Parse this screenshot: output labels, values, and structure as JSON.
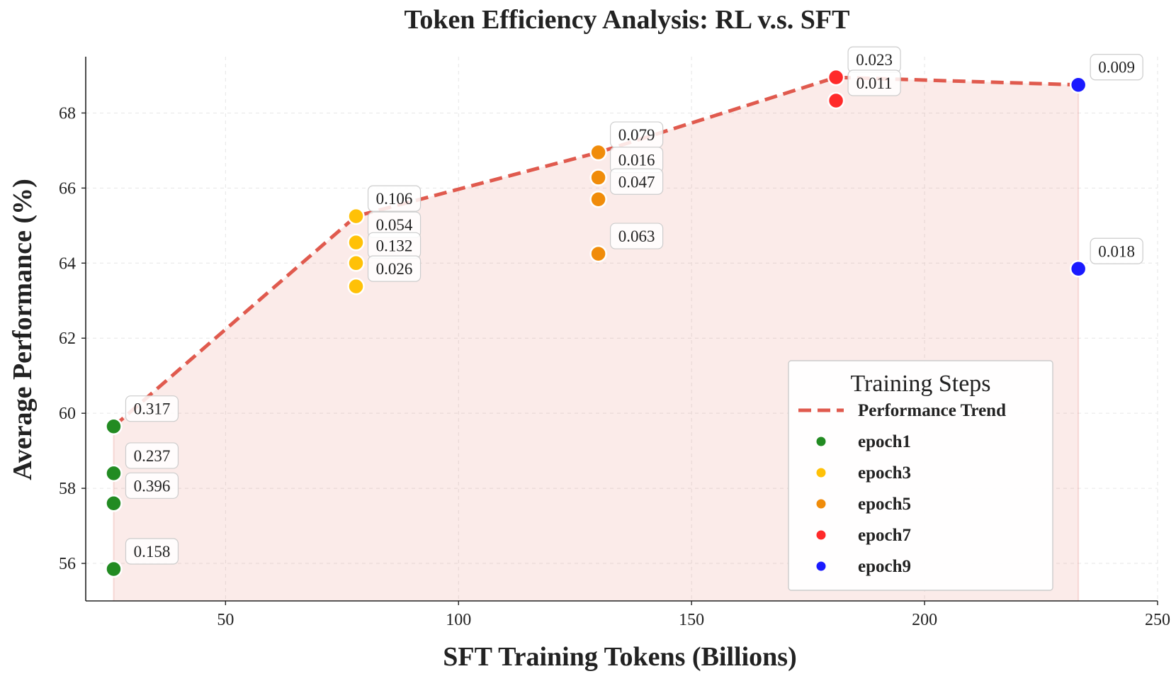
{
  "chart_data": {
    "type": "scatter",
    "title": "Token Efficiency Analysis: RL v.s. SFT",
    "xlabel": "SFT Training Tokens (Billions)",
    "ylabel": "Average Performance (%)",
    "xlim": [
      20,
      250
    ],
    "ylim": [
      55,
      69.5
    ],
    "xticks": [
      50,
      100,
      150,
      200,
      250
    ],
    "yticks": [
      56,
      58,
      60,
      62,
      64,
      66,
      68
    ],
    "grid": true,
    "trend": {
      "name": "Performance Trend",
      "color": "#e05a4e",
      "x": [
        26,
        78,
        130,
        181,
        233
      ],
      "y": [
        59.65,
        65.25,
        66.95,
        68.95,
        68.75
      ]
    },
    "series": [
      {
        "name": "epoch1",
        "color": "#228b22",
        "x": 26,
        "points": [
          {
            "y": 59.65,
            "label": "0.317"
          },
          {
            "y": 58.4,
            "label": "0.237"
          },
          {
            "y": 57.6,
            "label": "0.396"
          },
          {
            "y": 55.85,
            "label": "0.158"
          }
        ]
      },
      {
        "name": "epoch3",
        "color": "#ffc107",
        "x": 78,
        "points": [
          {
            "y": 65.25,
            "label": "0.106"
          },
          {
            "y": 64.55,
            "label": "0.054"
          },
          {
            "y": 64.0,
            "label": "0.132"
          },
          {
            "y": 63.38,
            "label": "0.026"
          }
        ]
      },
      {
        "name": "epoch5",
        "color": "#f08c0a",
        "x": 130,
        "points": [
          {
            "y": 66.95,
            "label": "0.079"
          },
          {
            "y": 66.28,
            "label": "0.016"
          },
          {
            "y": 65.7,
            "label": "0.047"
          },
          {
            "y": 64.25,
            "label": "0.063"
          }
        ]
      },
      {
        "name": "epoch7",
        "color": "#ff2a2a",
        "x": 181,
        "points": [
          {
            "y": 68.95,
            "label": "0.023"
          },
          {
            "y": 68.33,
            "label": "0.011"
          }
        ]
      },
      {
        "name": "epoch9",
        "color": "#1a1aff",
        "x": 233,
        "points": [
          {
            "y": 68.75,
            "label": "0.009"
          },
          {
            "y": 63.85,
            "label": "0.018"
          }
        ]
      }
    ],
    "legend": {
      "title": "Training Steps",
      "position": "lower-right"
    }
  }
}
